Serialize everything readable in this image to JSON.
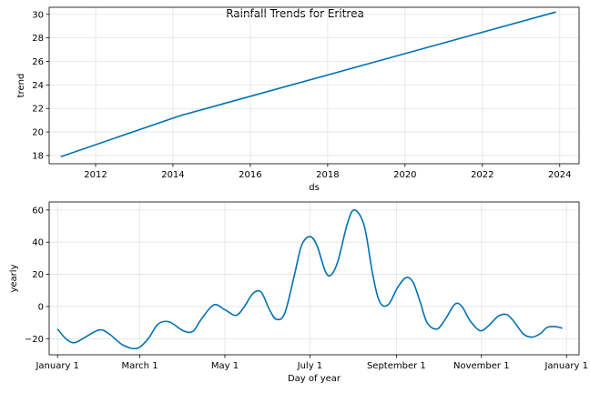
{
  "title": "Rainfall Trends for Eritrea",
  "chart_data": [
    {
      "type": "line",
      "xlabel": "ds",
      "ylabel": "trend",
      "xlim": [
        2010.8,
        2024.5
      ],
      "ylim": [
        17.3,
        30.6
      ],
      "grid": true,
      "color": "#0072B2",
      "xticks": [
        2012,
        2014,
        2016,
        2018,
        2020,
        2022,
        2024
      ],
      "xtick_labels": [
        "2012",
        "2014",
        "2016",
        "2018",
        "2020",
        "2022",
        "2024"
      ],
      "yticks": [
        18,
        20,
        22,
        24,
        26,
        28,
        30
      ],
      "ytick_labels": [
        "18",
        "20",
        "22",
        "24",
        "26",
        "28",
        "30"
      ],
      "series": [
        {
          "x": [
            2011.1,
            2014.2,
            2023.9
          ],
          "y": [
            17.9,
            21.4,
            30.2
          ]
        }
      ]
    },
    {
      "type": "line",
      "xlabel": "Day of year",
      "ylabel": "yearly",
      "xlim": [
        -6,
        374
      ],
      "ylim": [
        -30,
        65
      ],
      "grid": true,
      "color": "#0072B2",
      "xticks": [
        0,
        59,
        120,
        181,
        243,
        304,
        365
      ],
      "xtick_labels": [
        "January 1",
        "March 1",
        "May 1",
        "July 1",
        "September 1",
        "November 1",
        "January 1"
      ],
      "yticks": [
        -20,
        0,
        20,
        40,
        60
      ],
      "ytick_labels": [
        "−20",
        "0",
        "20",
        "40",
        "60"
      ],
      "series": [
        {
          "x": [
            0,
            6,
            12,
            20,
            30,
            37,
            47,
            57,
            65,
            72,
            80,
            90,
            97,
            103,
            112,
            120,
            128,
            134,
            140,
            146,
            152,
            157,
            163,
            170,
            175,
            181,
            186,
            192,
            196,
            201,
            208,
            213,
            220,
            226,
            231,
            237,
            244,
            250,
            255,
            260,
            265,
            272,
            278,
            285,
            290,
            296,
            303,
            309,
            316,
            322,
            327,
            334,
            340,
            346,
            351,
            357,
            362
          ],
          "y": [
            -14,
            -20,
            -22.5,
            -19,
            -14.5,
            -17,
            -24,
            -26,
            -20,
            -11,
            -9.5,
            -15,
            -15.5,
            -8,
            1,
            -2,
            -5.5,
            0,
            8,
            9,
            -2,
            -8,
            -4,
            20,
            38,
            43.5,
            38,
            22,
            19.5,
            28,
            52,
            60,
            50,
            20,
            3,
            1,
            12,
            18,
            15,
            3,
            -10,
            -14,
            -8,
            1.5,
            0,
            -9,
            -15,
            -12,
            -6,
            -5,
            -9,
            -17,
            -19,
            -17,
            -13,
            -12.5,
            -13.5
          ]
        }
      ]
    }
  ]
}
